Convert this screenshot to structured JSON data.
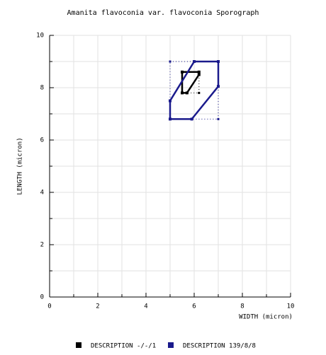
{
  "chart_data": {
    "type": "sporograph",
    "title": "Amanita flavoconia var. flavoconia Sporograph",
    "x_label": "WIDTH (micron)",
    "y_label": "LENGTH (micron)",
    "xlim": [
      0,
      10
    ],
    "ylim": [
      0,
      10
    ],
    "xticks": [
      0,
      2,
      4,
      6,
      8,
      10
    ],
    "yticks": [
      0,
      2,
      4,
      6,
      8,
      10
    ],
    "xminor": [
      1,
      3,
      5,
      7,
      9
    ],
    "yminor": [
      1,
      3,
      5,
      7,
      9
    ],
    "grid": true,
    "series": [
      {
        "name": "DESCRIPTION -/-/1",
        "color": "#000000",
        "x": [
          5.5,
          6.2,
          6.2,
          5.7,
          5.5
        ],
        "values": [
          8.6,
          8.6,
          8.5,
          7.8,
          7.8
        ],
        "box_x": [
          5.5,
          6.2
        ],
        "box_y": [
          7.8,
          8.6
        ]
      },
      {
        "name": "DESCRIPTION 139/8/8",
        "color": "#1a1a8c",
        "x": [
          5,
          5,
          5.9,
          7,
          7,
          6
        ],
        "values": [
          7.5,
          6.8,
          6.8,
          8.05,
          9,
          9
        ],
        "box_x": [
          5,
          7
        ],
        "box_y": [
          6.8,
          9
        ]
      }
    ]
  }
}
